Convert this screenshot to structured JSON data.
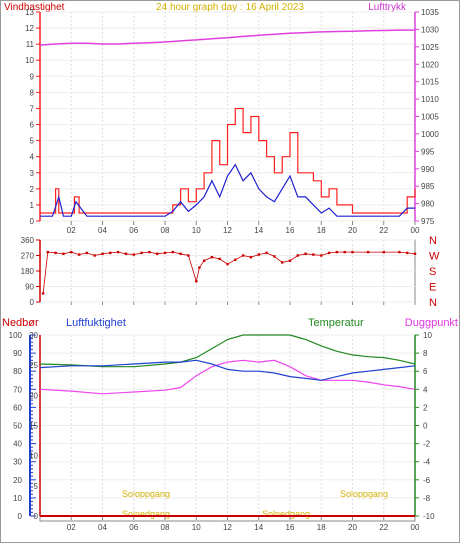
{
  "header": {
    "left_title": "Vindhastighet",
    "center_title": "24 hour graph day : 16 April 2023",
    "right_title": "Lufttrykk"
  },
  "lower_header": {
    "precip": "Nedbør",
    "humidity": "Luftfuktighet",
    "temperature": "Temperatur",
    "dewpoint": "Duggpunkt"
  },
  "sun_labels": {
    "sunrise_top": "Soloppgang",
    "sunrise_bottom": "Solnedgang",
    "sunset_left": "Solnedgang",
    "sunset_right": "Soloppgang"
  },
  "colors": {
    "wind": "#ff2020",
    "gust": "#2020d0",
    "pressure": "#e040e0",
    "direction": "#cc0000",
    "humidity": "#2040d0",
    "temperature": "#228822",
    "dewpoint": "#ee44ee",
    "precip": "#cc0000",
    "sun": "#d4b000"
  },
  "chart_data": [
    {
      "type": "line",
      "title": "24 hour graph day : 16 April 2023",
      "x_ticks": [
        "02",
        "04",
        "06",
        "08",
        "10",
        "12",
        "14",
        "16",
        "18",
        "20",
        "22",
        "00"
      ],
      "xlim": [
        0,
        24
      ],
      "y_left": {
        "label": "Vindhastighet",
        "ticks": [
          "0",
          "1",
          "2",
          "3",
          "4",
          "5",
          "6",
          "7",
          "8",
          "9",
          "10",
          "11",
          "12",
          "13"
        ],
        "ylim": [
          0,
          13
        ]
      },
      "y_right": {
        "label": "Lufttrykk",
        "ticks": [
          "975",
          "980",
          "985",
          "990",
          "995",
          "1000",
          "1005",
          "1010",
          "1015",
          "1020",
          "1025",
          "1030",
          "1035"
        ],
        "ylim": [
          975,
          1035
        ]
      },
      "series": [
        {
          "name": "Lufttrykk",
          "axis": "right",
          "x": [
            0,
            1,
            2,
            3,
            4,
            5,
            6,
            7,
            8,
            9,
            10,
            11,
            12,
            13,
            14,
            15,
            16,
            17,
            18,
            19,
            20,
            21,
            22,
            23,
            24
          ],
          "y": [
            1025.5,
            1025.8,
            1026.0,
            1026.0,
            1025.8,
            1025.8,
            1026.0,
            1026.2,
            1026.4,
            1026.7,
            1027.0,
            1027.3,
            1027.6,
            1028.0,
            1028.3,
            1028.6,
            1028.9,
            1029.1,
            1029.3,
            1029.4,
            1029.5,
            1029.6,
            1029.7,
            1029.8,
            1029.8
          ]
        },
        {
          "name": "wind-average",
          "axis": "left",
          "x": [
            0,
            0.8,
            1.2,
            1.5,
            2.0,
            2.3,
            3.0,
            3.5,
            4.0,
            5.0,
            6.0,
            7.0,
            8.0,
            8.5,
            9.0,
            9.5,
            10.0,
            10.5,
            11.0,
            11.5,
            12.0,
            12.5,
            13.0,
            13.5,
            14.0,
            14.5,
            15.0,
            15.5,
            16.0,
            16.5,
            17.0,
            17.5,
            18.0,
            18.5,
            19.0,
            20.0,
            21.0,
            22.0,
            23.0,
            23.5,
            24.0
          ],
          "y": [
            0.3,
            0.3,
            1.5,
            0.3,
            0.3,
            1.2,
            0.3,
            0.3,
            0.3,
            0.3,
            0.3,
            0.3,
            0.3,
            0.6,
            1.2,
            0.6,
            1.0,
            1.5,
            2.5,
            1.5,
            2.8,
            3.5,
            2.5,
            3.0,
            2.0,
            1.5,
            1.2,
            2.0,
            2.8,
            1.5,
            1.5,
            1.0,
            0.5,
            0.8,
            0.3,
            0.3,
            0.3,
            0.3,
            0.3,
            0.8,
            0.8
          ]
        },
        {
          "name": "wind-gust",
          "axis": "left",
          "x": [
            0,
            0.8,
            1.0,
            1.2,
            2.0,
            2.2,
            2.5,
            3.0,
            4.0,
            5.0,
            6.0,
            7.0,
            8.0,
            8.5,
            9.0,
            9.5,
            10.0,
            10.5,
            11.0,
            11.5,
            12.0,
            12.5,
            13.0,
            13.5,
            14.0,
            14.5,
            15.0,
            15.5,
            16.0,
            16.5,
            17.0,
            17.5,
            18.0,
            18.5,
            19.0,
            20.0,
            21.0,
            22.0,
            23.0,
            23.5,
            24.0
          ],
          "y": [
            0.5,
            0.5,
            2.0,
            0.5,
            0.5,
            1.5,
            0.5,
            0.5,
            0.5,
            0.5,
            0.5,
            0.5,
            0.5,
            1.0,
            2.0,
            1.2,
            2.0,
            3.0,
            5.0,
            3.5,
            6.0,
            7.0,
            5.5,
            6.5,
            5.0,
            4.0,
            3.0,
            4.0,
            5.5,
            3.0,
            3.0,
            2.5,
            1.5,
            2.0,
            1.0,
            0.5,
            0.5,
            0.5,
            0.5,
            1.5,
            2.0
          ]
        }
      ]
    },
    {
      "type": "scatter",
      "x_ticks": [],
      "xlim": [
        0,
        24
      ],
      "y_left": {
        "ticks": [
          "0",
          "90",
          "180",
          "270",
          "360"
        ],
        "ylim": [
          0,
          360
        ]
      },
      "y_right_labels": [
        "N",
        "W",
        "S",
        "E",
        "N"
      ],
      "series": [
        {
          "name": "direction",
          "x": [
            0.2,
            0.5,
            1.0,
            1.5,
            2.0,
            2.5,
            3.0,
            3.5,
            4.0,
            4.5,
            5.0,
            5.5,
            6.0,
            6.5,
            7.0,
            7.5,
            8.0,
            8.5,
            9.0,
            9.5,
            10.0,
            10.2,
            10.5,
            11.0,
            11.5,
            12.0,
            12.5,
            13.0,
            13.5,
            14.0,
            14.5,
            15.0,
            15.5,
            16.0,
            16.5,
            17.0,
            17.5,
            18.0,
            18.5,
            19.0,
            19.5,
            20.0,
            21.0,
            22.0,
            23.0,
            23.5,
            24.0
          ],
          "y": [
            50,
            290,
            285,
            280,
            290,
            275,
            285,
            270,
            280,
            285,
            290,
            280,
            275,
            285,
            290,
            280,
            285,
            290,
            280,
            270,
            120,
            200,
            240,
            260,
            250,
            220,
            245,
            270,
            260,
            275,
            285,
            265,
            230,
            240,
            270,
            280,
            275,
            270,
            285,
            290,
            290,
            290,
            290,
            290,
            290,
            285,
            280
          ]
        }
      ]
    },
    {
      "type": "line",
      "x_ticks": [
        "02",
        "04",
        "06",
        "08",
        "10",
        "12",
        "14",
        "16",
        "18",
        "20",
        "22",
        "00"
      ],
      "xlim": [
        0,
        24
      ],
      "y_left_outer": {
        "label": "Nedbør",
        "ticks": [
          "0",
          "10",
          "20",
          "30",
          "40",
          "50",
          "60",
          "70",
          "80",
          "90",
          "100"
        ],
        "ylim": [
          0,
          100
        ]
      },
      "y_left_inner": {
        "label": "Luftfuktighet",
        "ticks": [
          "0",
          "5",
          "10",
          "15",
          "20",
          "25",
          "30"
        ],
        "ylim": [
          0,
          30
        ]
      },
      "y_right": {
        "label": "Temperatur",
        "ticks": [
          "-10",
          "-8",
          "-6",
          "-4",
          "-2",
          "0",
          "2",
          "4",
          "6",
          "8",
          "10"
        ],
        "ylim": [
          -10,
          10
        ]
      },
      "series": [
        {
          "name": "Luftfuktighet",
          "axis": "left-outer",
          "x": [
            0,
            2,
            4,
            6,
            8,
            9,
            10,
            11,
            12,
            13,
            14,
            15,
            16,
            17,
            18,
            19,
            20,
            21,
            22,
            23,
            24
          ],
          "y": [
            82,
            83,
            83,
            84,
            85,
            85,
            86,
            84,
            81,
            80,
            80,
            79,
            77,
            76,
            75,
            77,
            79,
            80,
            81,
            82,
            83
          ]
        },
        {
          "name": "Temperatur",
          "axis": "right",
          "x": [
            0,
            2,
            4,
            6,
            8,
            9,
            10,
            11,
            12,
            13,
            14,
            15,
            16,
            17,
            18,
            19,
            20,
            21,
            22,
            23,
            24
          ],
          "y": [
            6.8,
            6.7,
            6.5,
            6.5,
            6.8,
            7.0,
            7.5,
            8.5,
            9.5,
            10.0,
            10.0,
            10.0,
            10.0,
            9.5,
            8.8,
            8.2,
            7.8,
            7.6,
            7.5,
            7.2,
            6.8
          ]
        },
        {
          "name": "Duggpunkt",
          "axis": "right",
          "x": [
            0,
            2,
            4,
            6,
            8,
            9,
            10,
            11,
            12,
            13,
            14,
            15,
            16,
            17,
            18,
            19,
            20,
            21,
            22,
            23,
            24
          ],
          "y": [
            4.0,
            3.8,
            3.5,
            3.7,
            3.9,
            4.2,
            5.5,
            6.5,
            7.0,
            7.2,
            7.0,
            7.2,
            6.5,
            5.5,
            5.0,
            5.0,
            5.0,
            4.8,
            4.5,
            4.3,
            4.0
          ]
        },
        {
          "name": "Nedbør",
          "axis": "left-inner",
          "x": [
            0,
            24
          ],
          "y": [
            0,
            0
          ]
        }
      ]
    }
  ]
}
